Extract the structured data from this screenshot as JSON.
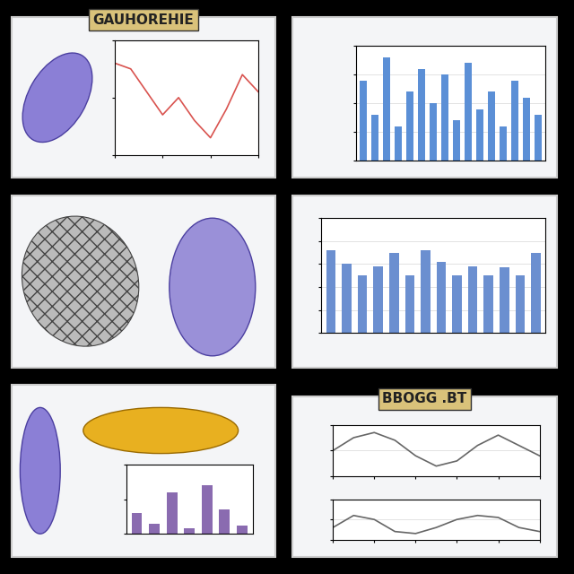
{
  "banners": [
    "GAUHOREHIE",
    "BBOGG .BT"
  ],
  "chart_data": [
    {
      "type": "line",
      "x": [
        0,
        1,
        2,
        3,
        4,
        5,
        6,
        7,
        8,
        9
      ],
      "values": [
        0.8,
        0.75,
        0.55,
        0.35,
        0.5,
        0.3,
        0.15,
        0.4,
        0.7,
        0.55
      ],
      "color": "#d9534f",
      "xlim": [
        0,
        9
      ],
      "xticks": [
        0,
        3,
        6,
        9
      ],
      "ylim": [
        0,
        1
      ],
      "yticks": [
        0,
        0.5,
        1
      ],
      "grid": false,
      "tick_labels": false
    },
    {
      "type": "bar",
      "categories": [
        null,
        null,
        null,
        null,
        null,
        null,
        null,
        null,
        null,
        null,
        null,
        null,
        null,
        null,
        null,
        null
      ],
      "values": [
        0.7,
        0.4,
        0.9,
        0.3,
        0.6,
        0.8,
        0.5,
        0.75,
        0.35,
        0.85,
        0.45,
        0.6,
        0.3,
        0.7,
        0.55,
        0.4
      ],
      "color": "#5b8fd6",
      "ylim": [
        0,
        1
      ],
      "yticks": [
        0,
        0.25,
        0.5,
        0.75,
        1
      ],
      "grid": true,
      "tick_labels": false
    },
    {
      "type": "bar",
      "categories": [
        null,
        null,
        null,
        null,
        null,
        null,
        null,
        null,
        null,
        null,
        null,
        null,
        null,
        null
      ],
      "values": [
        0.72,
        0.6,
        0.5,
        0.58,
        0.7,
        0.5,
        0.72,
        0.62,
        0.5,
        0.58,
        0.5,
        0.57,
        0.5,
        0.7
      ],
      "color": "#6b8fd0",
      "ylim": [
        0,
        1
      ],
      "yticks": [
        0,
        0.2,
        0.4,
        0.6,
        0.8,
        1
      ],
      "grid": true,
      "tick_labels": false
    },
    {
      "type": "bar",
      "categories": [
        null,
        null,
        null,
        null,
        null,
        null,
        null
      ],
      "values": [
        0.3,
        0.15,
        0.6,
        0.08,
        0.7,
        0.35,
        0.12
      ],
      "color": "#8a6bb0",
      "ylim": [
        0,
        1
      ],
      "yticks": [
        0,
        0.5,
        1
      ],
      "grid": false,
      "tick_labels": false
    },
    {
      "type": "line",
      "x": [
        0,
        1,
        2,
        3,
        4,
        5,
        6,
        7,
        8,
        9,
        10
      ],
      "values": [
        0.5,
        0.75,
        0.85,
        0.7,
        0.4,
        0.2,
        0.3,
        0.6,
        0.8,
        0.6,
        0.4
      ],
      "color": "#666666",
      "xlim": [
        0,
        10
      ],
      "xticks": [
        0,
        2,
        4,
        6,
        8,
        10
      ],
      "ylim": [
        0,
        1
      ],
      "yticks": [
        0,
        0.5,
        1
      ],
      "grid": true,
      "tick_labels": false
    },
    {
      "type": "line",
      "x": [
        0,
        1,
        2,
        3,
        4,
        5,
        6,
        7,
        8,
        9,
        10
      ],
      "values": [
        0.3,
        0.6,
        0.5,
        0.2,
        0.15,
        0.3,
        0.5,
        0.6,
        0.55,
        0.3,
        0.2
      ],
      "color": "#666666",
      "xlim": [
        0,
        10
      ],
      "xticks": [
        0,
        2,
        4,
        6,
        8,
        10
      ],
      "ylim": [
        0,
        1
      ],
      "yticks": [
        0,
        0.5,
        1
      ],
      "grid": true,
      "tick_labels": false
    }
  ]
}
